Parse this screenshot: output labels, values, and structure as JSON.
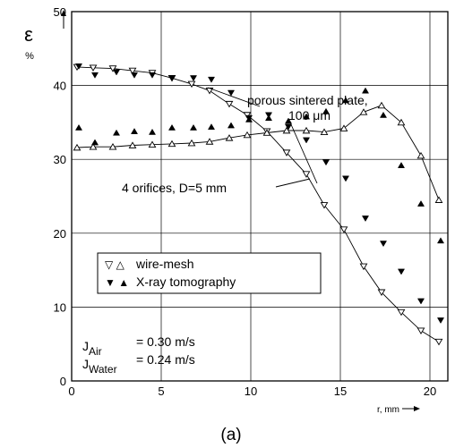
{
  "chart_data": {
    "type": "scatter",
    "caption": "(a)",
    "ylabel_symbol": "ε",
    "ylabel_unit": "%",
    "xlabel": "r, mm",
    "xlim": [
      0,
      21
    ],
    "ylim": [
      0,
      50
    ],
    "x_ticks": [
      0,
      5,
      10,
      15,
      20
    ],
    "y_ticks": [
      0,
      10,
      20,
      30,
      40,
      50
    ],
    "grid": true,
    "legend": {
      "placement": "lower-left",
      "entries": [
        {
          "symbols": "▽ △",
          "label": "wire-mesh"
        },
        {
          "symbols": "▼ ▲",
          "label": "X-ray tomography"
        }
      ]
    },
    "annotations": {
      "plate_line1": "porous sintered plate,",
      "plate_line2": "100 μm",
      "orifices": "4 orifices, D=5 mm"
    },
    "conditions": [
      {
        "sym": "J",
        "sub": "Air",
        "value": "= 0.30 m/s"
      },
      {
        "sym": "J",
        "sub": "Water",
        "value": "= 0.24 m/s"
      }
    ],
    "series": [
      {
        "name": "wire-mesh",
        "marker": "triangle-down-open",
        "line": true,
        "x": [
          0.3,
          1.2,
          2.3,
          3.4,
          4.5,
          5.6,
          6.7,
          7.7,
          8.8,
          9.8,
          10.9,
          12.0,
          13.1,
          14.1,
          15.2,
          16.3,
          17.3,
          18.4,
          19.5,
          20.5
        ],
        "y": [
          42.5,
          42.4,
          42.3,
          42.0,
          41.7,
          41.0,
          40.2,
          39.3,
          37.5,
          36.0,
          33.8,
          30.9,
          28.0,
          23.8,
          20.5,
          15.5,
          12.0,
          9.3,
          6.8,
          5.3
        ]
      },
      {
        "name": "wire-mesh",
        "marker": "triangle-up-open",
        "line": true,
        "x": [
          0.3,
          1.2,
          2.3,
          3.4,
          4.5,
          5.6,
          6.7,
          7.7,
          8.8,
          9.8,
          10.9,
          12.0,
          13.1,
          14.1,
          15.2,
          16.3,
          17.3,
          18.4,
          19.5,
          20.5
        ],
        "y": [
          31.6,
          31.7,
          31.7,
          31.9,
          32.0,
          32.1,
          32.2,
          32.4,
          32.9,
          33.3,
          33.6,
          33.9,
          33.9,
          33.7,
          34.2,
          36.4,
          37.3,
          35.0,
          30.5,
          24.5
        ]
      },
      {
        "name": "X-ray tomography",
        "marker": "triangle-down-filled",
        "line": false,
        "x": [
          0.4,
          1.3,
          2.5,
          3.5,
          4.5,
          5.6,
          6.8,
          7.8,
          8.9,
          9.9,
          11.0,
          12.1,
          13.1,
          14.2,
          15.3,
          16.4,
          17.4,
          18.4,
          19.5,
          20.6
        ],
        "y": [
          42.6,
          41.4,
          41.8,
          41.4,
          41.4,
          41.0,
          41.0,
          40.8,
          39.0,
          35.6,
          36.0,
          34.4,
          32.6,
          29.6,
          27.4,
          22.0,
          18.6,
          14.8,
          10.8,
          8.2
        ]
      },
      {
        "name": "X-ray tomography",
        "marker": "triangle-up-filled",
        "line": false,
        "x": [
          0.4,
          1.3,
          2.5,
          3.5,
          4.5,
          5.6,
          6.8,
          7.8,
          8.9,
          9.9,
          11.0,
          12.1,
          13.1,
          14.2,
          15.3,
          16.4,
          17.4,
          18.4,
          19.5,
          20.6
        ],
        "y": [
          34.3,
          32.3,
          33.6,
          33.8,
          33.7,
          34.3,
          34.3,
          34.4,
          34.6,
          35.4,
          35.6,
          35.2,
          35.8,
          36.5,
          38.0,
          39.3,
          36.0,
          29.2,
          24.0,
          19.0
        ]
      }
    ]
  }
}
